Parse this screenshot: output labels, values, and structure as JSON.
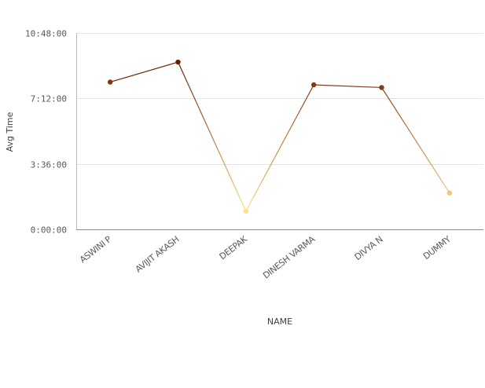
{
  "chart_data": {
    "type": "line",
    "title": "",
    "xlabel": "NAME",
    "ylabel": "Avg Time",
    "categories": [
      "ASWINI P",
      "AVIJIT AKASH",
      "DEEPAK",
      "DINESH VARMA",
      "DIVYA N",
      "DUMMY"
    ],
    "y_unit": "hours",
    "ylim": [
      0,
      10.8
    ],
    "y_ticks": [
      0,
      3.6,
      7.2,
      10.8
    ],
    "y_tick_labels": [
      "0:00:00",
      "3:36:00",
      "7:12:00",
      "10:48:00"
    ],
    "values": [
      8.1,
      9.2,
      1.0,
      7.95,
      7.8,
      2.0
    ],
    "grid": "horizontal",
    "legend": "none",
    "color_low": "#FFE08A",
    "color_high": "#6E1A00"
  }
}
